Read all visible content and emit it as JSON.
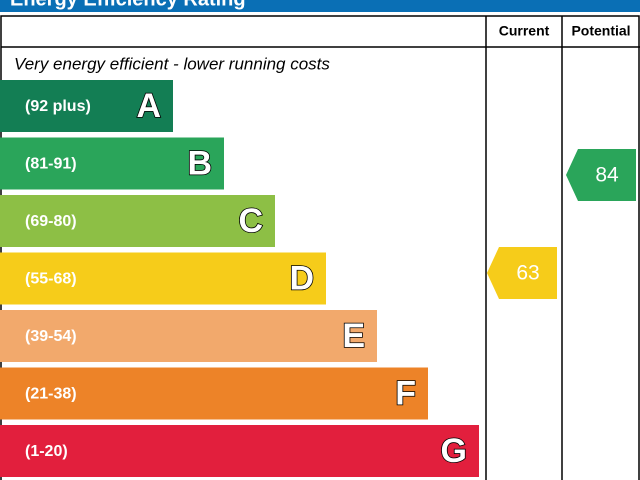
{
  "chart_data": {
    "type": "epc",
    "title": "Energy Efficiency Rating",
    "top_note": "Very energy efficient - lower running costs",
    "columns": [
      "Current",
      "Potential"
    ],
    "bands": [
      {
        "range": "(92 plus)",
        "letter": "A",
        "color": "#137e54"
      },
      {
        "range": "(81-91)",
        "letter": "B",
        "color": "#2aa55a"
      },
      {
        "range": "(69-80)",
        "letter": "C",
        "color": "#8dbf45"
      },
      {
        "range": "(55-68)",
        "letter": "D",
        "color": "#f6cc1a"
      },
      {
        "range": "(39-54)",
        "letter": "E",
        "color": "#f2a96c"
      },
      {
        "range": "(21-38)",
        "letter": "F",
        "color": "#ed8328"
      },
      {
        "range": "(1-20)",
        "letter": "G",
        "color": "#e21f3d"
      }
    ],
    "series": [
      {
        "name": "Current",
        "value": 63,
        "color": "#f6cc1a"
      },
      {
        "name": "Potential",
        "value": 84,
        "color": "#2aa55a"
      }
    ]
  }
}
